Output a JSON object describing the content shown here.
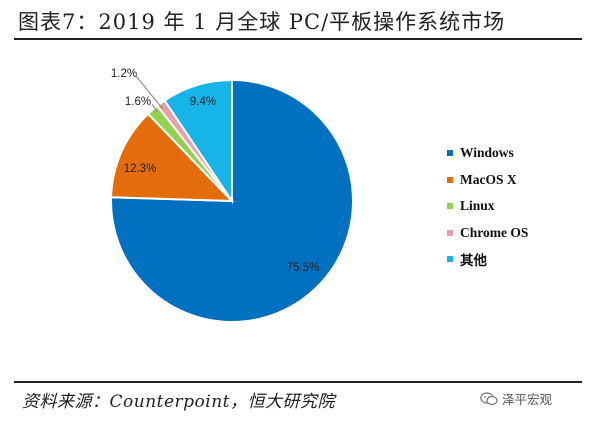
{
  "title": "图表7：2019 年 1 月全球 PC/平板操作系统市场",
  "source": "资料来源：Counterpoint，恒大研究院",
  "watermark": "泽平宏观",
  "colors": {
    "Windows": "#0070c0",
    "MacOS X": "#e46c0a",
    "Linux": "#92d050",
    "Chrome OS": "#e6a0a8",
    "其他": "#17b4e8"
  },
  "chart_data": {
    "type": "pie",
    "categories": [
      "Windows",
      "MacOS X",
      "Linux",
      "Chrome OS",
      "其他"
    ],
    "values": [
      75.5,
      12.3,
      1.6,
      1.2,
      9.4
    ],
    "labels": [
      "75.5%",
      "12.3%",
      "1.6%",
      "1.2%",
      "9.4%"
    ],
    "title": "",
    "legend_position": "right",
    "start": "12 o'clock",
    "direction": "clockwise"
  }
}
